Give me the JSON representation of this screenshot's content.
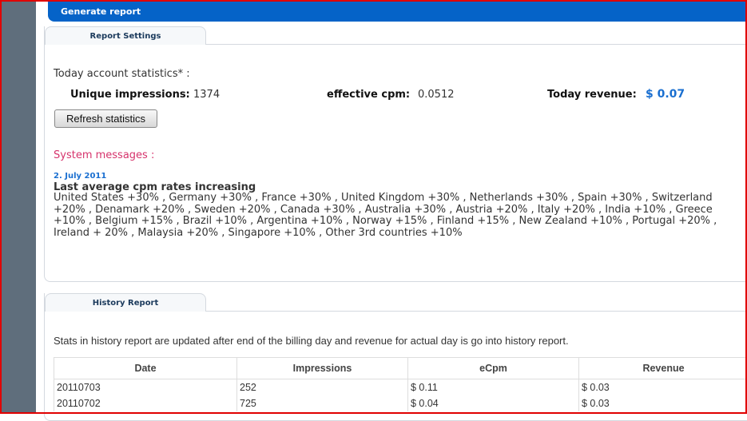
{
  "header": {
    "title": "Generate report"
  },
  "settings": {
    "tab": "Report Settings",
    "stats_label": "Today account statistics* :",
    "impressions_label": "Unique impressions:",
    "impressions": "1374",
    "ecpm_label": "effective cpm:",
    "ecpm": "0.0512",
    "revenue_label": "Today revenue:",
    "revenue": "$ 0.07",
    "refresh_button": "Refresh statistics"
  },
  "messages": {
    "label": "System messages :",
    "items": [
      {
        "date": "2. July 2011",
        "title": "Last average cpm rates increasing",
        "body": "United States +30% , Germany +30% , France +30% , United Kingdom +30% , Netherlands +30% , Spain +30% , Switzerland +20% , Denamark +20% , Sweden +20% , Canada +30% , Australia +30% , Austria +20% , Italy +20% , India +10% , Greece +10% , Belgium +15% , Brazil +10% , Argentina +10% , Norway +15% , Finland +15% , New Zealand +10% , Portugal +20% , Ireland + 20% , Malaysia +20% , Singapore +10% , Other 3rd countries +10%"
      }
    ]
  },
  "history": {
    "tab": "History Report",
    "note": "Stats in history report are updated after end of the billing day and revenue for actual day is go into history report.",
    "columns": [
      "Date",
      "Impressions",
      "eCpm",
      "Revenue"
    ],
    "rows": [
      [
        "20110703",
        "252",
        "$ 0.11",
        "$ 0.03"
      ],
      [
        "20110702",
        "725",
        "$ 0.04",
        "$ 0.03"
      ]
    ]
  },
  "colors": {
    "accent": "#0563c8",
    "revenue": "#1a6fd0",
    "messages": "#d6336c",
    "frame": "#e00000"
  }
}
